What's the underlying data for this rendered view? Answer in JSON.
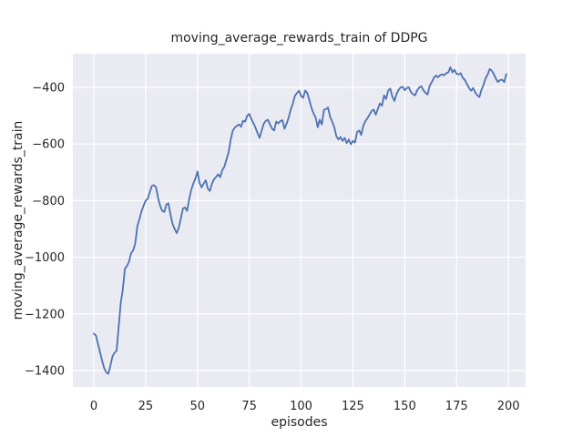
{
  "chart_data": {
    "type": "line",
    "title": "moving_average_rewards_train of DDPG",
    "xlabel": "episodes",
    "ylabel": "moving_average_rewards_train",
    "xlim": [
      -10.1,
      208.3
    ],
    "ylim": [
      -1458,
      -281
    ],
    "grid": true,
    "legend": false,
    "xticks": {
      "values": [
        0,
        25,
        50,
        75,
        100,
        125,
        150,
        175,
        200
      ],
      "labels": [
        "0",
        "25",
        "50",
        "75",
        "100",
        "125",
        "150",
        "175",
        "200"
      ]
    },
    "yticks": {
      "values": [
        -400,
        -600,
        -800,
        -1000,
        -1200,
        -1400
      ],
      "labels": [
        "−400",
        "−600",
        "−800",
        "−1000",
        "−1200",
        "−1400"
      ]
    },
    "colors": {
      "line": "#4c72b0",
      "plot_bg": "#eaeaf2",
      "grid": "#ffffff",
      "text": "#262626",
      "figure_bg": "#ffffff"
    },
    "series": [
      {
        "name": "moving_average_rewards_train",
        "x_start": 0,
        "x_step": 1,
        "values": [
          -1270,
          -1276,
          -1305,
          -1335,
          -1365,
          -1392,
          -1406,
          -1412,
          -1383,
          -1350,
          -1338,
          -1330,
          -1245,
          -1160,
          -1115,
          -1040,
          -1031,
          -1015,
          -985,
          -976,
          -950,
          -890,
          -866,
          -838,
          -818,
          -800,
          -793,
          -770,
          -748,
          -745,
          -753,
          -790,
          -818,
          -836,
          -840,
          -814,
          -810,
          -850,
          -882,
          -900,
          -915,
          -895,
          -862,
          -828,
          -824,
          -836,
          -795,
          -762,
          -740,
          -722,
          -697,
          -737,
          -753,
          -740,
          -728,
          -757,
          -766,
          -740,
          -724,
          -716,
          -707,
          -717,
          -691,
          -680,
          -655,
          -630,
          -586,
          -553,
          -542,
          -536,
          -531,
          -539,
          -518,
          -521,
          -500,
          -494,
          -512,
          -526,
          -542,
          -562,
          -578,
          -551,
          -528,
          -518,
          -514,
          -531,
          -546,
          -552,
          -521,
          -527,
          -519,
          -516,
          -546,
          -528,
          -507,
          -478,
          -458,
          -430,
          -420,
          -412,
          -430,
          -437,
          -411,
          -420,
          -446,
          -472,
          -492,
          -506,
          -541,
          -514,
          -531,
          -479,
          -477,
          -471,
          -504,
          -521,
          -541,
          -572,
          -584,
          -575,
          -589,
          -578,
          -597,
          -584,
          -601,
          -589,
          -595,
          -558,
          -552,
          -568,
          -536,
          -519,
          -509,
          -496,
          -484,
          -478,
          -496,
          -477,
          -457,
          -465,
          -428,
          -441,
          -412,
          -404,
          -432,
          -448,
          -424,
          -409,
          -400,
          -398,
          -410,
          -402,
          -400,
          -417,
          -424,
          -428,
          -410,
          -400,
          -396,
          -410,
          -419,
          -425,
          -395,
          -382,
          -367,
          -358,
          -364,
          -357,
          -354,
          -357,
          -350,
          -347,
          -329,
          -347,
          -338,
          -352,
          -354,
          -350,
          -366,
          -374,
          -388,
          -402,
          -412,
          -402,
          -418,
          -428,
          -434,
          -409,
          -391,
          -368,
          -354,
          -335,
          -341,
          -354,
          -370,
          -381,
          -374,
          -373,
          -381,
          -353
        ]
      }
    ]
  }
}
